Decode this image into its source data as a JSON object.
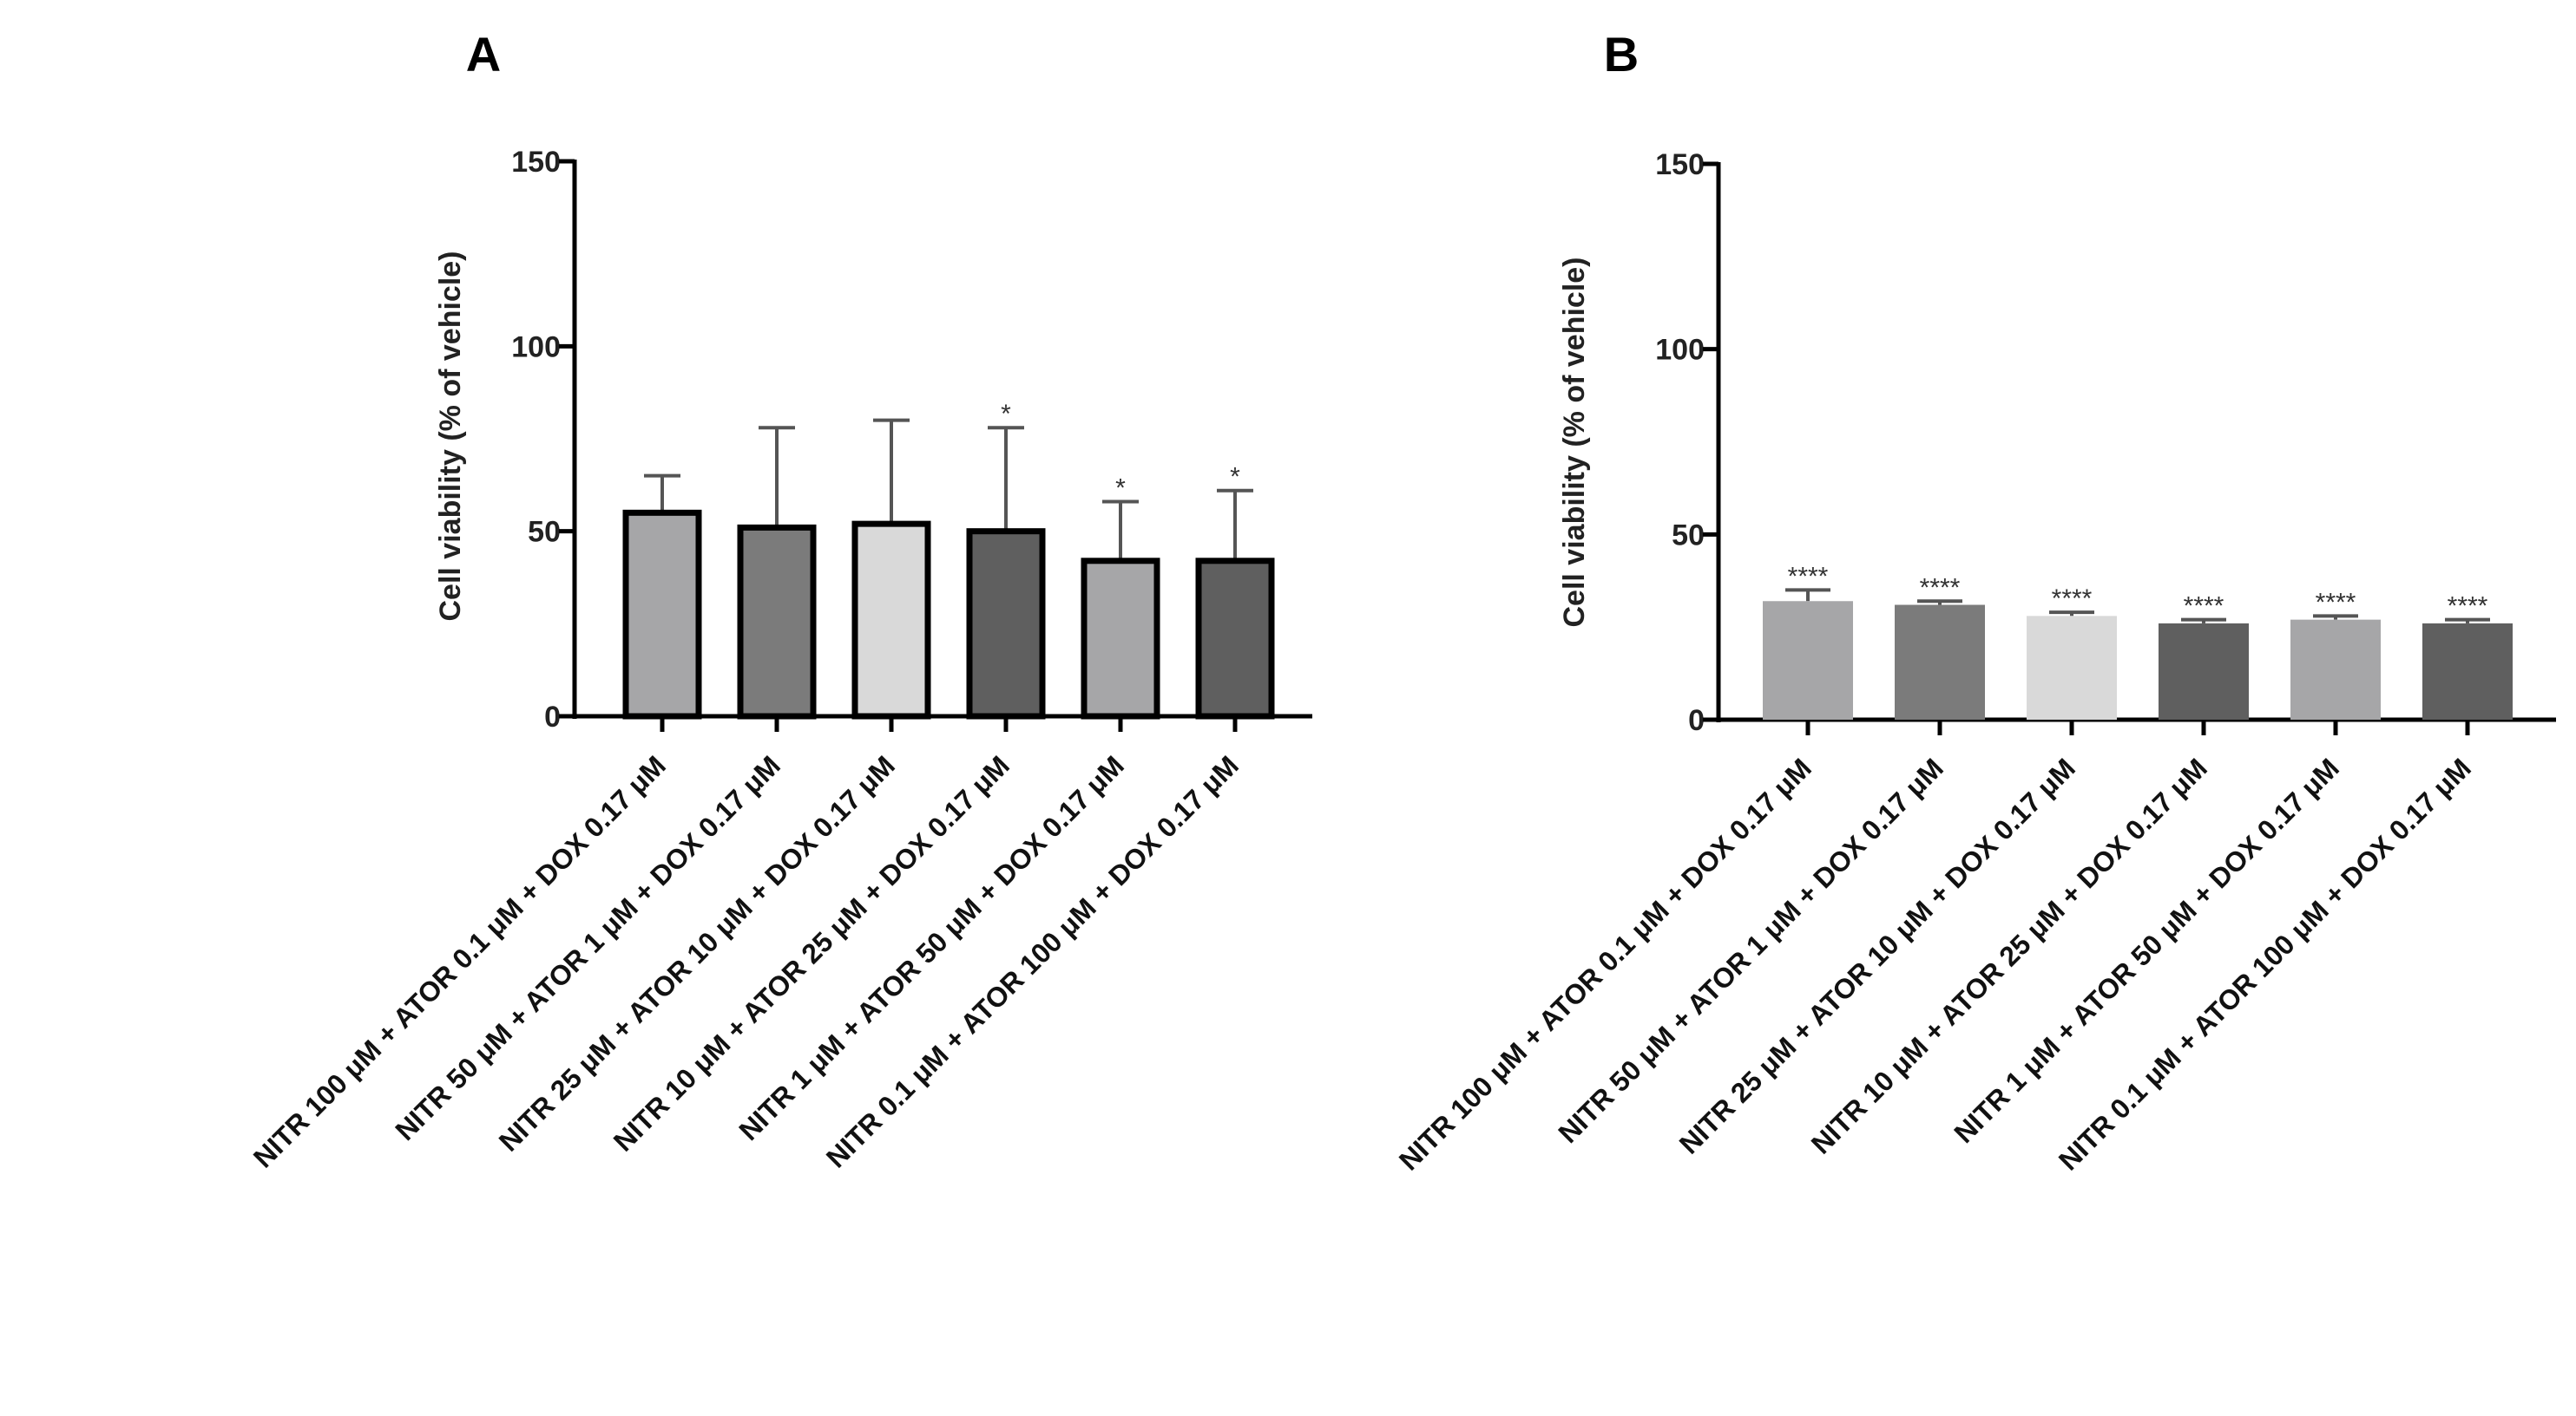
{
  "chart_data": [
    {
      "panel": "A",
      "type": "bar",
      "ylabel": "Cell viability (%  of vehicle)",
      "ylim": [
        0,
        150
      ],
      "yticks": [
        "0",
        "50",
        "100",
        "150"
      ],
      "categories": [
        "NITR 100 μM + ATOR 0.1 μM + DOX 0.17 μM",
        "NITR 50 μM + ATOR 1 μM + DOX 0.17 μM",
        "NITR 25 μM + ATOR 10 μM + DOX 0.17 μM",
        "NITR 10 μM + ATOR 25 μM + DOX 0.17 μM",
        "NITR 1 μM + ATOR 50 μM + DOX 0.17 μM",
        "NITR 0.1 μM + ATOR 100 μM + DOX 0.17 μM"
      ],
      "values": [
        55,
        51,
        52,
        50,
        42,
        42
      ],
      "errors": [
        10,
        27,
        28,
        28,
        16,
        19
      ],
      "significance": [
        "",
        "",
        "",
        "*",
        "*",
        "*"
      ],
      "colors": [
        "#a6a6a8",
        "#7b7b7b",
        "#d9d9d9",
        "#5f5f5f",
        "#a6a6a8",
        "#5f5f5f"
      ]
    },
    {
      "panel": "B",
      "type": "bar",
      "ylabel": "Cell viability (%  of vehicle)",
      "ylim": [
        0,
        150
      ],
      "yticks": [
        "0",
        "50",
        "100",
        "150"
      ],
      "categories": [
        "NITR 100 μM + ATOR 0.1 μM + DOX 0.17 μM",
        "NITR 50 μM + ATOR 1 μM + DOX 0.17 μM",
        "NITR 25 μM + ATOR 10 μM + DOX 0.17 μM",
        "NITR 10 μM + ATOR 25 μM + DOX 0.17 μM",
        "NITR 1 μM + ATOR 50 μM + DOX 0.17 μM",
        "NITR 0.1 μM + ATOR 100 μM + DOX 0.17 μM"
      ],
      "values": [
        32,
        31,
        28,
        26,
        27,
        26
      ],
      "errors": [
        3,
        1,
        1,
        1,
        1,
        1
      ],
      "significance": [
        "****",
        "****",
        "****",
        "****",
        "****",
        "****"
      ],
      "colors": [
        "#a6a6a8",
        "#7b7b7b",
        "#d9d9d9",
        "#5f5f5f",
        "#a6a6a8",
        "#5f5f5f"
      ]
    }
  ]
}
